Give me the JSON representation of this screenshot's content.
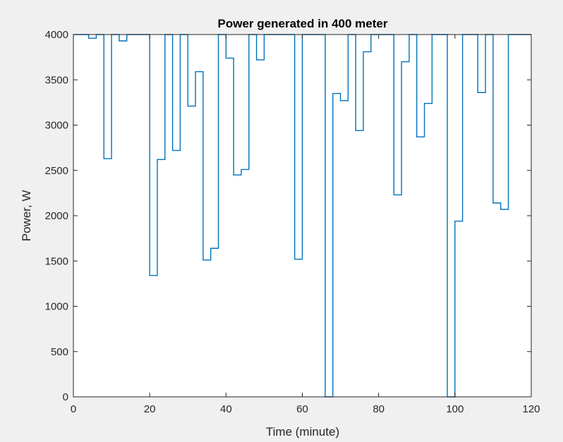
{
  "chart_data": {
    "type": "line",
    "title": "Power generated in 400 meter",
    "xlabel": "Time (minute)",
    "ylabel": "Power, W",
    "xlim": [
      0,
      120
    ],
    "ylim": [
      0,
      4000
    ],
    "xticks": [
      "0",
      "20",
      "40",
      "60",
      "80",
      "100",
      "120"
    ],
    "yticks": [
      "0",
      "500",
      "1000",
      "1500",
      "2000",
      "2500",
      "3000",
      "3500",
      "4000"
    ],
    "grid": false,
    "legend": "none",
    "colors": {
      "line": "#0072bd",
      "axes_bg": "#ffffff",
      "figure_bg": "#f0f0f0",
      "axis": "#262626"
    },
    "series": [
      {
        "style": "stairs",
        "x": [
          0,
          4,
          6,
          8,
          10,
          12,
          14,
          20,
          22,
          24,
          26,
          28,
          30,
          32,
          34,
          36,
          38,
          40,
          42,
          44,
          46,
          48,
          50,
          52,
          54,
          56,
          58,
          60,
          62,
          64,
          66,
          68,
          70,
          72,
          74,
          76,
          78,
          80,
          82,
          84,
          86,
          88,
          90,
          92,
          94,
          96,
          98,
          100,
          102,
          104,
          106,
          108,
          110,
          112,
          114,
          116,
          120
        ],
        "y": [
          4000,
          3960,
          4000,
          2630,
          4000,
          3930,
          4000,
          1340,
          2620,
          4000,
          2720,
          4000,
          3210,
          3590,
          1510,
          1640,
          4000,
          3740,
          2450,
          2510,
          4000,
          3720,
          4000,
          4000,
          4000,
          4000,
          1520,
          4000,
          4000,
          4000,
          0,
          3350,
          3270,
          4000,
          2940,
          3810,
          4000,
          4000,
          4000,
          2230,
          3700,
          4000,
          2870,
          3240,
          4000,
          4000,
          0,
          1940,
          4000,
          4000,
          3360,
          4000,
          2140,
          2070,
          4000,
          4000,
          4000
        ]
      }
    ]
  }
}
